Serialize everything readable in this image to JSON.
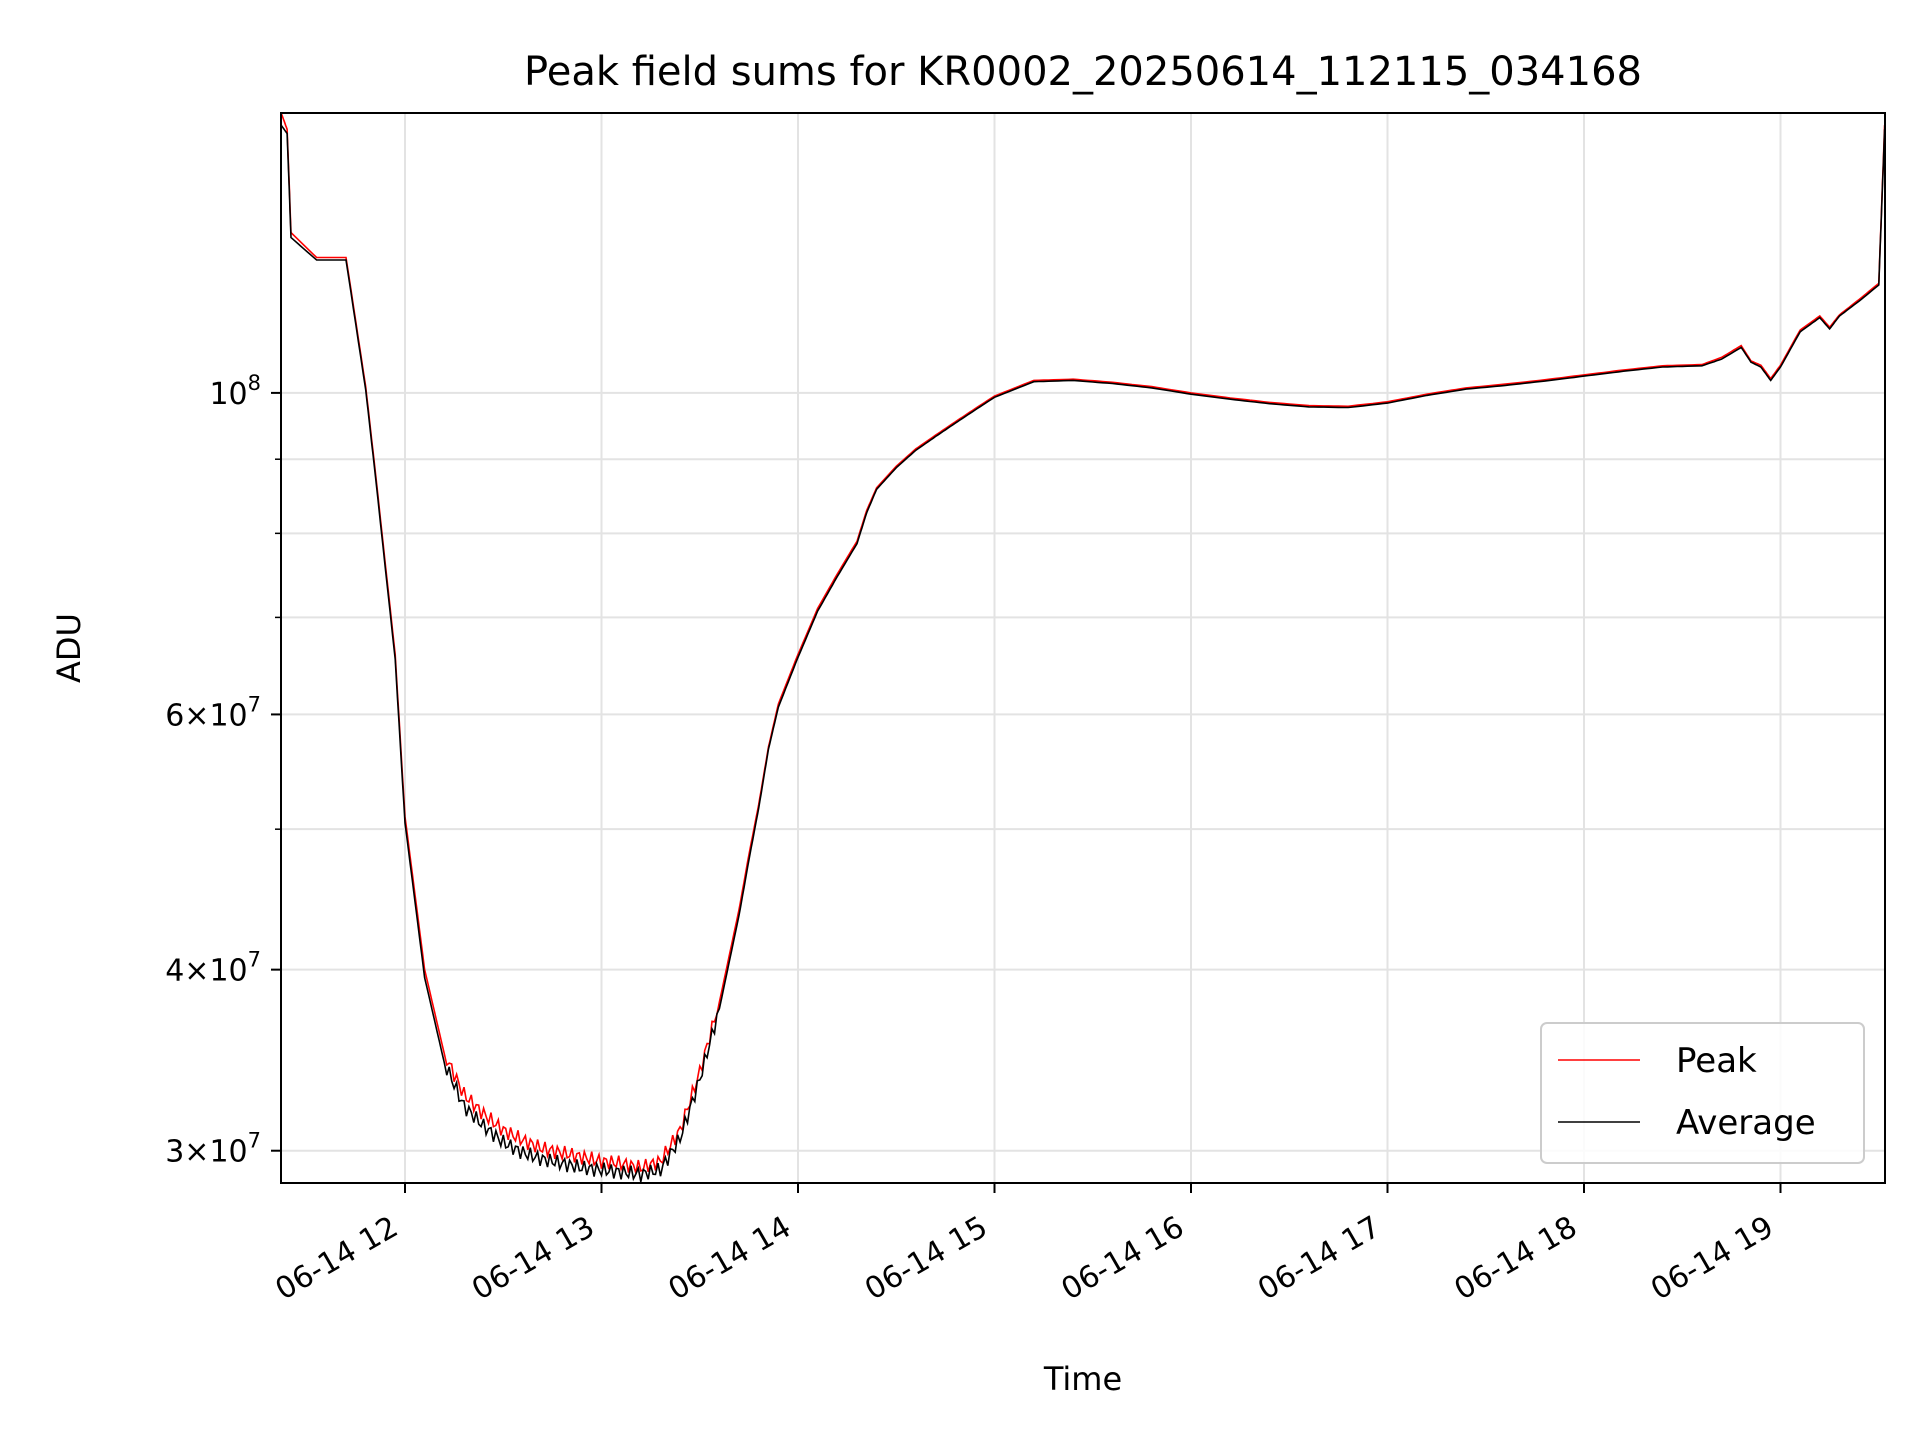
{
  "chart_data": {
    "type": "line",
    "title": "Peak field sums for KR0002_20250614_112115_034168",
    "xlabel": "Time",
    "ylabel": "ADU",
    "y_scale": "log",
    "grid": true,
    "legend_placement": "lower-right",
    "xlim": [
      "2025-06-14 11:21",
      "2025-06-14 19:32"
    ],
    "ylim": [
      28500000,
      156000000
    ],
    "x_ticks": [
      "06-14 12",
      "06-14 13",
      "06-14 14",
      "06-14 15",
      "06-14 16",
      "06-14 17",
      "06-14 18",
      "06-14 19"
    ],
    "x_tick_hours": [
      12,
      13,
      14,
      15,
      16,
      17,
      18,
      19
    ],
    "y_ticks": [
      {
        "value": 30000000,
        "mantissa": "3",
        "exponent": "7"
      },
      {
        "value": 40000000,
        "mantissa": "4",
        "exponent": "7"
      },
      {
        "value": 60000000,
        "mantissa": "6",
        "exponent": "7"
      },
      {
        "value": 100000000,
        "mantissa": "",
        "exponent": "8"
      }
    ],
    "y_minor_ticks": [
      50000000,
      70000000,
      80000000,
      90000000
    ],
    "series": [
      {
        "name": "Peak",
        "color": "#ff0000",
        "x_hours": [
          11.37,
          11.4,
          11.42,
          11.55,
          11.7,
          11.8,
          11.85,
          11.95,
          12.0,
          12.1,
          12.2,
          12.3,
          12.4,
          12.5,
          12.6,
          12.7,
          12.8,
          12.9,
          13.0,
          13.1,
          13.2,
          13.3,
          13.4,
          13.5,
          13.6,
          13.7,
          13.75,
          13.8,
          13.85,
          13.9,
          14.0,
          14.1,
          14.2,
          14.3,
          14.35,
          14.4,
          14.5,
          14.6,
          14.7,
          14.8,
          14.9,
          15.0,
          15.2,
          15.4,
          15.6,
          15.8,
          16.0,
          16.2,
          16.4,
          16.6,
          16.8,
          17.0,
          17.2,
          17.4,
          17.6,
          17.8,
          18.0,
          18.2,
          18.4,
          18.6,
          18.7,
          18.8,
          18.85,
          18.9,
          18.95,
          19.0,
          19.1,
          19.2,
          19.25,
          19.3,
          19.4,
          19.5,
          19.53
        ],
        "values": [
          156000000,
          152000000,
          129000000,
          124000000,
          124000000,
          101000000,
          88000000,
          66000000,
          51000000,
          40000000,
          35000000,
          32800000,
          31800000,
          31000000,
          30500000,
          30100000,
          29900000,
          29700000,
          29500000,
          29400000,
          29200000,
          29500000,
          31000000,
          34000000,
          38000000,
          44000000,
          48000000,
          52000000,
          57000000,
          61000000,
          66000000,
          71000000,
          75000000,
          79000000,
          83000000,
          86000000,
          89000000,
          91500000,
          93500000,
          95500000,
          97500000,
          99500000,
          102000000,
          102200000,
          101700000,
          101000000,
          100000000,
          99200000,
          98500000,
          98000000,
          97900000,
          98600000,
          99800000,
          100800000,
          101400000,
          102100000,
          102900000,
          103700000,
          104400000,
          104600000,
          105800000,
          107800000,
          105200000,
          104500000,
          102300000,
          104500000,
          110500000,
          113000000,
          111000000,
          113200000,
          116000000,
          119000000,
          153000000
        ]
      },
      {
        "name": "Average",
        "color": "#000000",
        "x_hours": [
          11.37,
          11.4,
          11.42,
          11.55,
          11.7,
          11.8,
          11.85,
          11.95,
          12.0,
          12.1,
          12.2,
          12.3,
          12.4,
          12.5,
          12.6,
          12.7,
          12.8,
          12.9,
          13.0,
          13.1,
          13.2,
          13.3,
          13.4,
          13.5,
          13.6,
          13.7,
          13.75,
          13.8,
          13.85,
          13.9,
          14.0,
          14.1,
          14.2,
          14.3,
          14.35,
          14.4,
          14.5,
          14.6,
          14.7,
          14.8,
          14.9,
          15.0,
          15.2,
          15.4,
          15.6,
          15.8,
          16.0,
          16.2,
          16.4,
          16.6,
          16.8,
          17.0,
          17.2,
          17.4,
          17.6,
          17.8,
          18.0,
          18.2,
          18.4,
          18.6,
          18.7,
          18.8,
          18.85,
          18.9,
          18.95,
          19.0,
          19.1,
          19.2,
          19.25,
          19.3,
          19.4,
          19.5,
          19.53
        ],
        "values": [
          153000000,
          151000000,
          128000000,
          123500000,
          123500000,
          100500000,
          87500000,
          65500000,
          50500000,
          39500000,
          34500000,
          32200000,
          31200000,
          30400000,
          29900000,
          29600000,
          29400000,
          29200000,
          29100000,
          29000000,
          28900000,
          29100000,
          30600000,
          33600000,
          37600000,
          43600000,
          47600000,
          51700000,
          56800000,
          60700000,
          65700000,
          70700000,
          74700000,
          78700000,
          82700000,
          85800000,
          88800000,
          91300000,
          93300000,
          95300000,
          97300000,
          99300000,
          101800000,
          102000000,
          101500000,
          100800000,
          99800000,
          99000000,
          98300000,
          97800000,
          97700000,
          98400000,
          99600000,
          100600000,
          101200000,
          101900000,
          102700000,
          103500000,
          104200000,
          104400000,
          105500000,
          107500000,
          105000000,
          104200000,
          102000000,
          104200000,
          110200000,
          112700000,
          110700000,
          113000000,
          115700000,
          118700000,
          152000000
        ]
      }
    ]
  }
}
